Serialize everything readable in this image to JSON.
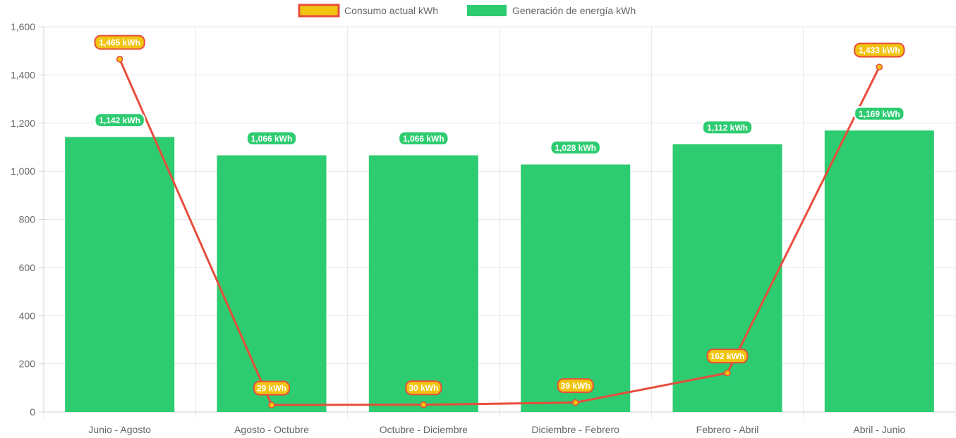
{
  "chart_data": {
    "type": "bar",
    "categories": [
      "Junio - Agosto",
      "Agosto - Octubre",
      "Octubre - Diciembre",
      "Diciembre - Febrero",
      "Febrero - Abril",
      "Abril - Junio"
    ],
    "series": [
      {
        "name": "Consumo actual kWh",
        "type": "line",
        "values": [
          1465,
          29,
          30,
          39,
          162,
          1433
        ],
        "labels": [
          "1,465 kWh",
          "29 kWh",
          "30 kWh",
          "39 kWh",
          "162 kWh",
          "1,433 kWh"
        ],
        "color": "#e74c3c",
        "fill_color": "#f1c40f"
      },
      {
        "name": "Generación de energía kWh",
        "type": "bar",
        "values": [
          1142,
          1066,
          1066,
          1028,
          1112,
          1169
        ],
        "labels": [
          "1,142 kWh",
          "1,066 kWh",
          "1,066 kWh",
          "1,028 kWh",
          "1,112 kWh",
          "1,169 kWh"
        ],
        "color": "#2ecc71"
      }
    ],
    "ylim": [
      0,
      1600
    ],
    "yticks": [
      0,
      200,
      400,
      600,
      800,
      1000,
      1200,
      1400,
      1600
    ],
    "ytick_labels": [
      "0",
      "200",
      "400",
      "600",
      "800",
      "1,000",
      "1,200",
      "1,400",
      "1,600"
    ],
    "grid": true,
    "legend": "top-center",
    "xlabel": "",
    "ylabel": ""
  }
}
